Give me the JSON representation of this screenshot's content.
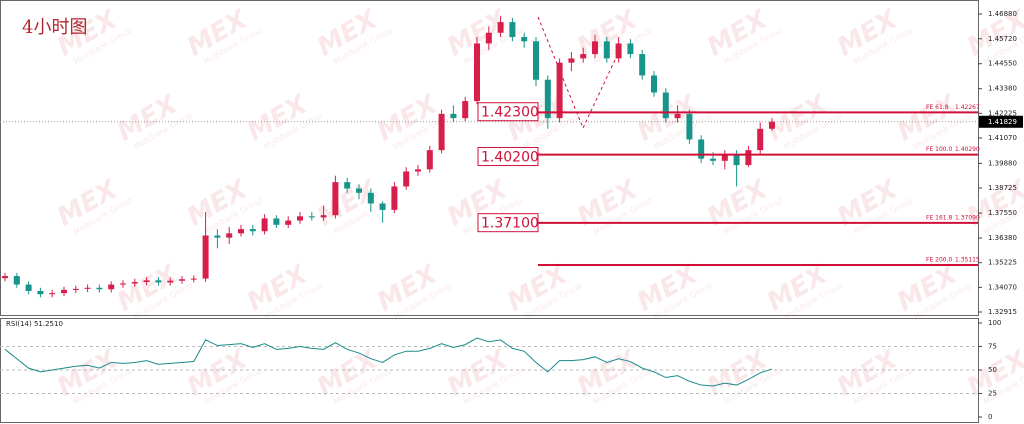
{
  "chart_data": [
    {
      "type": "candlestick",
      "title": "4小时图",
      "up_color": "#d81e4a",
      "down_color": "#17958a",
      "open": [
        1.345,
        1.346,
        1.342,
        1.339,
        1.3375,
        1.338,
        1.3395,
        1.34,
        1.3405,
        1.3398,
        1.342,
        1.3425,
        1.3432,
        1.344,
        1.343,
        1.3438,
        1.3445,
        1.3448,
        1.365,
        1.364,
        1.366,
        1.368,
        1.367,
        1.373,
        1.37,
        1.372,
        1.374,
        1.3735,
        1.3745,
        1.39,
        1.387,
        1.385,
        1.38,
        1.377,
        1.388,
        1.395,
        1.396,
        1.405,
        1.422,
        1.42,
        1.428,
        1.455,
        1.46,
        1.465,
        1.458,
        1.456,
        1.438,
        1.42,
        1.446,
        1.448,
        1.45,
        1.456,
        1.448,
        1.455,
        1.45,
        1.44,
        1.432,
        1.42,
        1.422,
        1.41,
        1.401,
        1.4,
        1.403,
        1.398,
        1.405,
        1.415
      ],
      "high": [
        1.3475,
        1.3475,
        1.3435,
        1.3405,
        1.3395,
        1.341,
        1.3415,
        1.342,
        1.342,
        1.3435,
        1.344,
        1.3447,
        1.3455,
        1.3455,
        1.3453,
        1.346,
        1.3463,
        1.376,
        1.368,
        1.369,
        1.37,
        1.37,
        1.375,
        1.3745,
        1.374,
        1.376,
        1.376,
        1.379,
        1.393,
        1.392,
        1.389,
        1.387,
        1.381,
        1.39,
        1.397,
        1.398,
        1.407,
        1.424,
        1.426,
        1.43,
        1.458,
        1.463,
        1.468,
        1.467,
        1.46,
        1.458,
        1.44,
        1.448,
        1.451,
        1.453,
        1.459,
        1.458,
        1.458,
        1.457,
        1.452,
        1.442,
        1.434,
        1.426,
        1.424,
        1.412,
        1.404,
        1.405,
        1.405,
        1.407,
        1.418,
        1.42
      ],
      "low": [
        1.3435,
        1.3405,
        1.3375,
        1.336,
        1.336,
        1.3365,
        1.338,
        1.3385,
        1.3383,
        1.3383,
        1.3405,
        1.341,
        1.3417,
        1.3415,
        1.3415,
        1.3423,
        1.343,
        1.3433,
        1.359,
        1.361,
        1.3645,
        1.365,
        1.3655,
        1.3685,
        1.3685,
        1.3705,
        1.372,
        1.372,
        1.373,
        1.385,
        1.382,
        1.376,
        1.371,
        1.3755,
        1.3865,
        1.393,
        1.3945,
        1.4035,
        1.418,
        1.4185,
        1.4265,
        1.452,
        1.458,
        1.456,
        1.453,
        1.435,
        1.415,
        1.418,
        1.442,
        1.446,
        1.448,
        1.446,
        1.446,
        1.448,
        1.438,
        1.43,
        1.418,
        1.418,
        1.408,
        1.399,
        1.398,
        1.396,
        1.388,
        1.397,
        1.403,
        1.414
      ],
      "close": [
        1.346,
        1.342,
        1.339,
        1.3375,
        1.338,
        1.3395,
        1.34,
        1.3405,
        1.3398,
        1.342,
        1.3425,
        1.3432,
        1.344,
        1.343,
        1.3438,
        1.3445,
        1.3448,
        1.365,
        1.364,
        1.366,
        1.368,
        1.367,
        1.373,
        1.37,
        1.372,
        1.374,
        1.3735,
        1.3745,
        1.39,
        1.387,
        1.385,
        1.38,
        1.377,
        1.388,
        1.395,
        1.396,
        1.405,
        1.422,
        1.42,
        1.428,
        1.455,
        1.46,
        1.465,
        1.458,
        1.456,
        1.438,
        1.42,
        1.446,
        1.448,
        1.45,
        1.456,
        1.448,
        1.455,
        1.45,
        1.44,
        1.432,
        1.42,
        1.422,
        1.41,
        1.401,
        1.4,
        1.403,
        1.398,
        1.405,
        1.415,
        1.4183
      ],
      "ylim": [
        1.32774,
        1.47536
      ],
      "yticks": [
        {
          "value": 1.4688,
          "label": "1.46880"
        },
        {
          "value": 1.4572,
          "label": "1.45720"
        },
        {
          "value": 1.4455,
          "label": "1.44550"
        },
        {
          "value": 1.4338,
          "label": "1.43380"
        },
        1.42225,
        {
          "value": 1.4107,
          "label": "1.41070"
        },
        {
          "value": 1.3988,
          "label": "1.39880"
        },
        1.38725,
        {
          "value": 1.3755,
          "label": "1.37550"
        },
        {
          "value": 1.3638,
          "label": "1.36380"
        },
        1.35225,
        {
          "value": 1.3407,
          "label": "1.34070"
        },
        1.32915
      ],
      "fib_levels": [
        {
          "name": "FE 61.8",
          "value": 1.42267,
          "label": "1.42267"
        },
        {
          "name": "FE 100.0",
          "value": 1.4029,
          "label": "1.40290"
        },
        {
          "name": "FE 161.8",
          "value": 1.3709,
          "label": "1.37090"
        },
        {
          "name": "FE 200.0",
          "value": 1.35115,
          "label": "1.35115"
        }
      ],
      "price_labels": [
        {
          "value": 1.423,
          "label": "1.42300"
        },
        {
          "value": 1.402,
          "label": "1.40200"
        },
        {
          "value": 1.371,
          "label": "1.37100"
        }
      ],
      "current_price": 1.41829,
      "level_color": "#d0103a"
    },
    {
      "type": "line",
      "title": "RSI(14) 51.2510",
      "color": "#1a8a8c",
      "values": [
        72,
        62,
        52,
        48,
        50,
        52,
        54,
        55,
        52,
        58,
        57,
        58,
        60,
        56,
        57,
        58,
        59,
        82,
        76,
        77,
        78,
        74,
        78,
        72,
        73,
        75,
        73,
        72,
        79,
        72,
        68,
        62,
        58,
        66,
        70,
        70,
        73,
        78,
        74,
        77,
        84,
        80,
        82,
        73,
        70,
        58,
        48,
        60,
        60,
        61,
        64,
        58,
        62,
        59,
        52,
        48,
        42,
        44,
        38,
        34,
        33,
        36,
        34,
        40,
        47,
        51
      ],
      "ylim": [
        -5.3,
        105.3
      ],
      "yticks": [
        100,
        75,
        50,
        25,
        0
      ]
    }
  ],
  "watermark": {
    "logo": "MEX",
    "name": "Multibank Group"
  }
}
